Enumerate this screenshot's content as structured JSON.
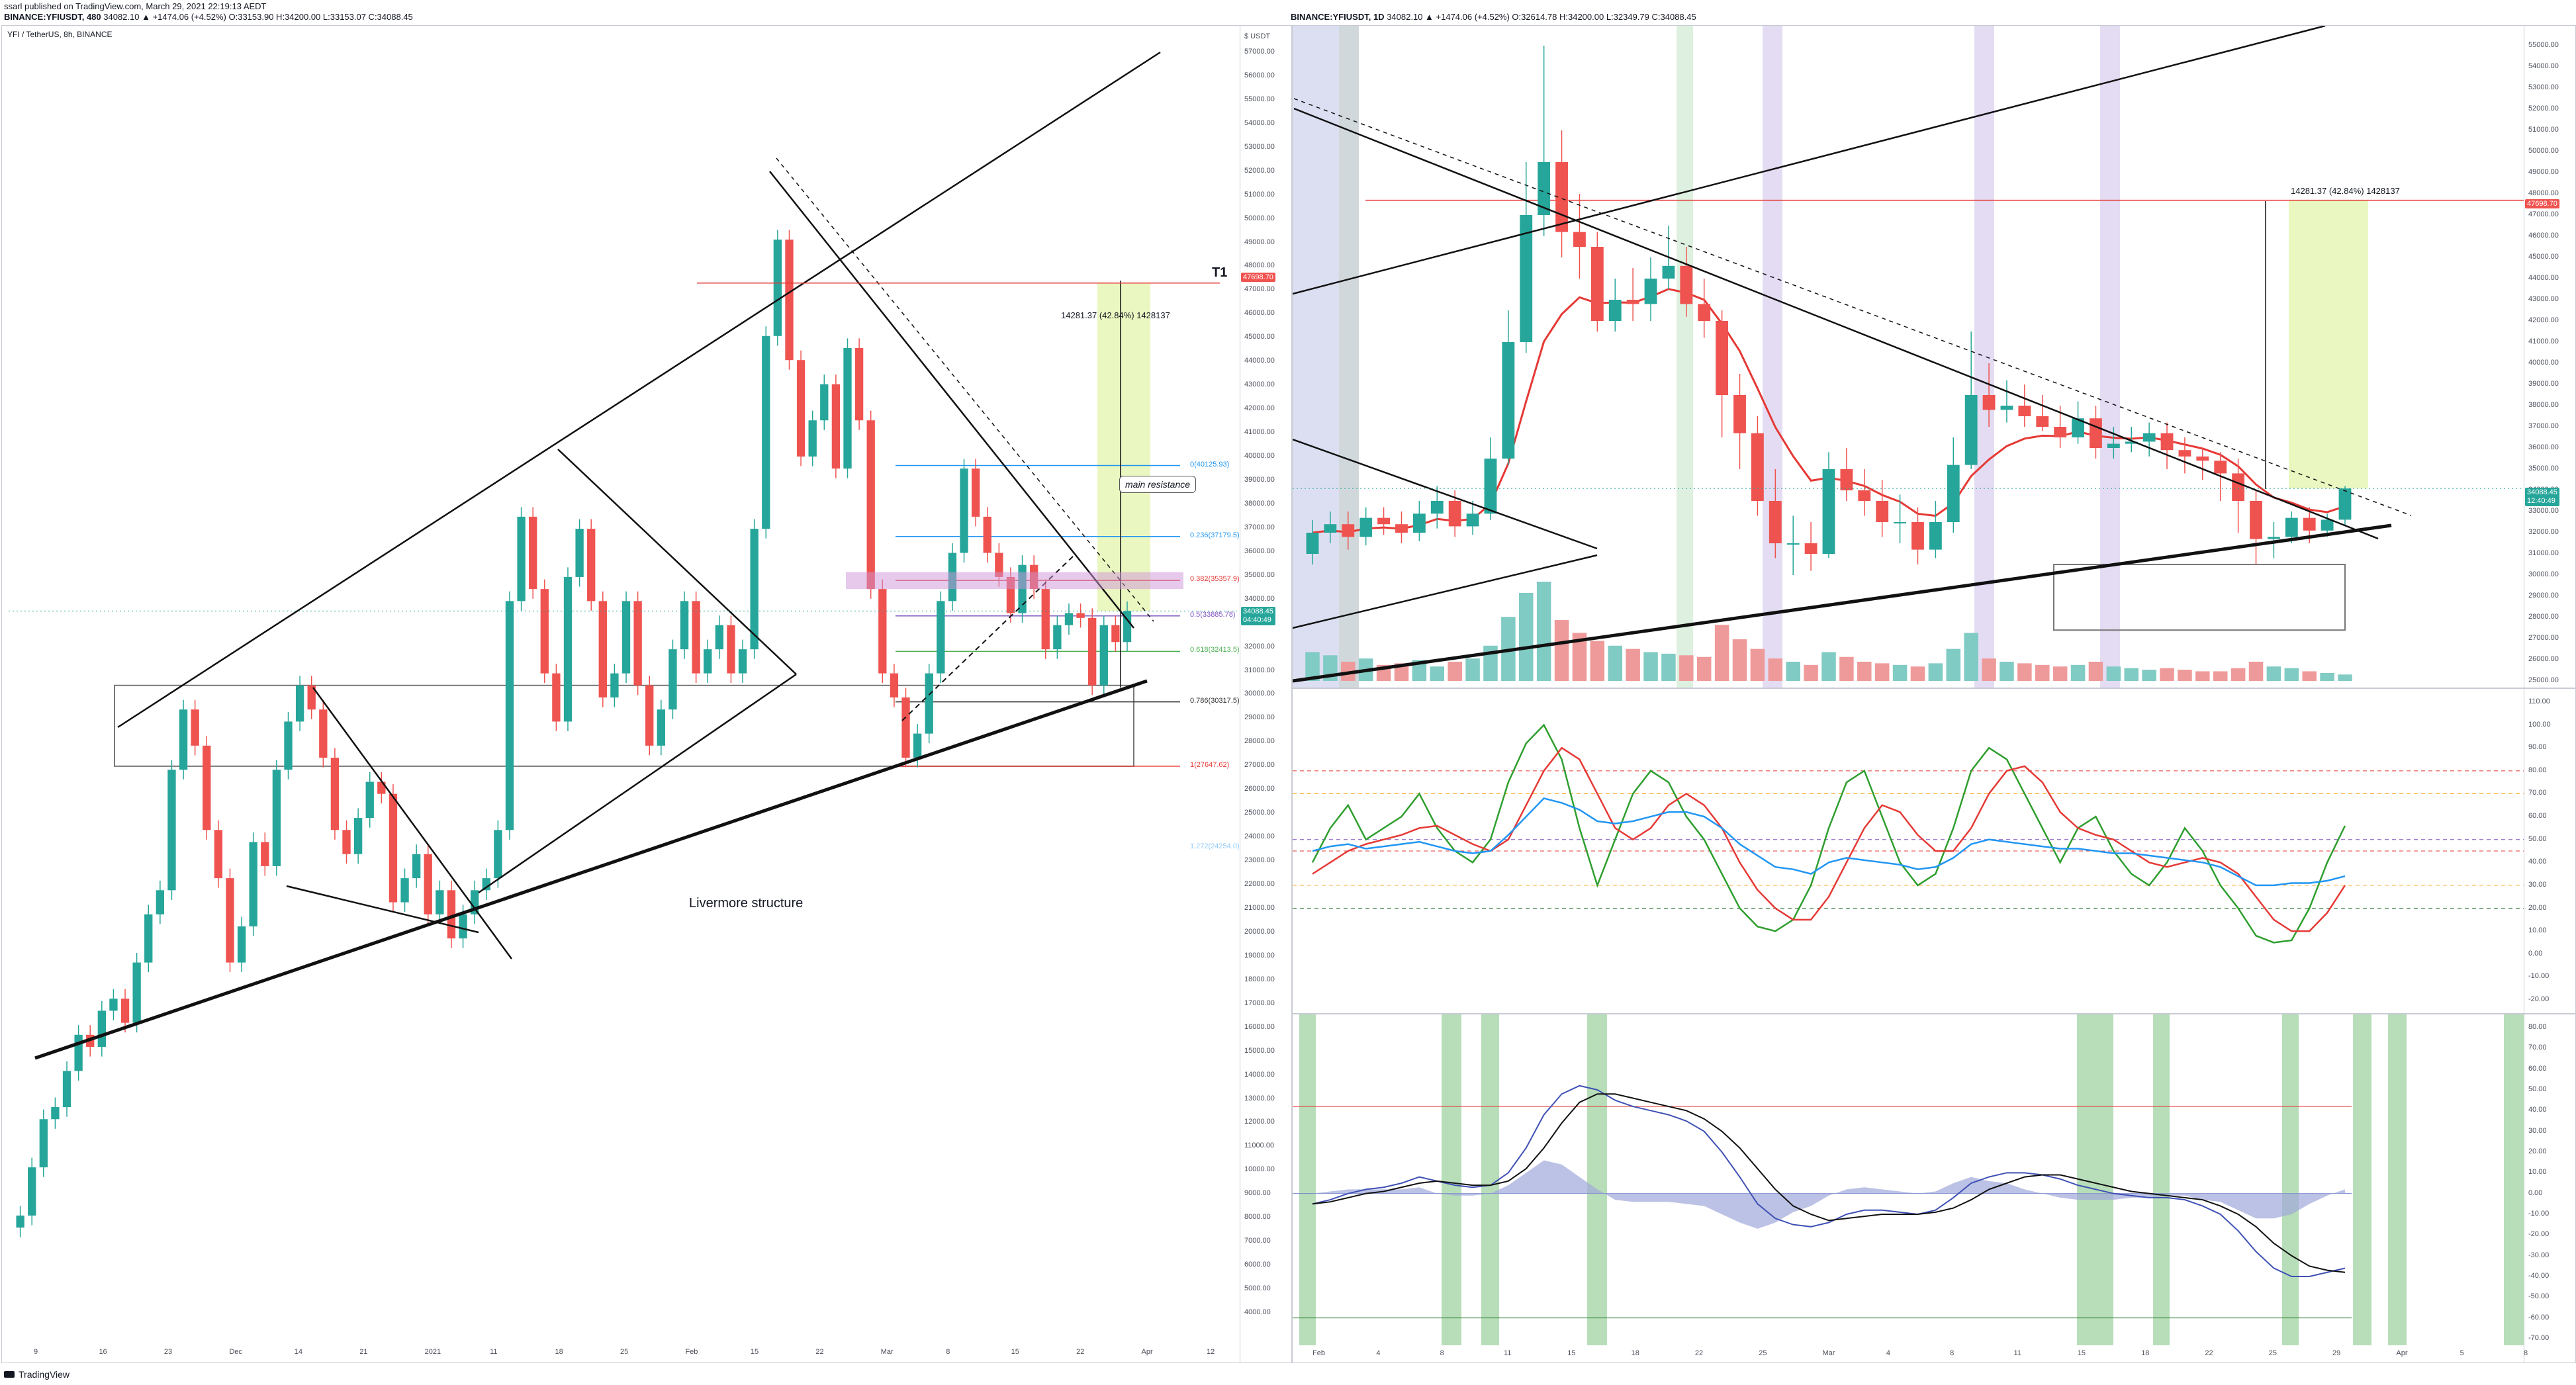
{
  "header": {
    "published": "ssarl published on TradingView.com, March 29, 2021 22:19:13 AEDT",
    "left_symbol": "BINANCE:YFIUSDT, 480",
    "left_ohlc": "34082.10 ▲ +1474.06 (+4.52%) O:33153.90 H:34200.00 L:33153.07 C:34088.45",
    "right_symbol": "BINANCE:YFIUSDT, 1D",
    "right_ohlc": "34082.10 ▲ +1474.06 (+4.52%) O:32614.78 H:34200.00 L:32349.79 C:34088.45"
  },
  "left_panel": {
    "title": "YFI / TetherUS, 8h, BINANCE",
    "currency": "$ USDT",
    "y_ticks": [
      "57000.00",
      "56000.00",
      "55000.00",
      "54000.00",
      "53000.00",
      "52000.00",
      "51000.00",
      "50000.00",
      "49000.00",
      "48000.00",
      "47000.00",
      "46000.00",
      "45000.00",
      "44000.00",
      "43000.00",
      "42000.00",
      "41000.00",
      "40000.00",
      "39000.00",
      "38000.00",
      "37000.00",
      "36000.00",
      "35000.00",
      "34000.00",
      "33000.00",
      "32000.00",
      "31000.00",
      "30000.00",
      "29000.00",
      "28000.00",
      "27000.00",
      "26000.00",
      "25000.00",
      "24000.00",
      "23000.00",
      "22000.00",
      "21000.00",
      "20000.00",
      "19000.00",
      "18000.00",
      "17000.00",
      "16000.00",
      "15000.00",
      "14000.00",
      "13000.00",
      "12000.00",
      "11000.00",
      "10000.00",
      "9000.00",
      "8000.00",
      "7000.00",
      "6000.00",
      "5000.00",
      "4000.00"
    ],
    "x_ticks": [
      "9",
      "16",
      "23",
      "Dec",
      "14",
      "21",
      "2021",
      "11",
      "18",
      "25",
      "Feb",
      "15",
      "22",
      "Mar",
      "8",
      "15",
      "22",
      "Apr",
      "12"
    ],
    "annotations": {
      "structure": "Livermore structure",
      "resistance": "main resistance",
      "target": "T1",
      "measure": "14281.37 (42.84%) 1428137",
      "price_tag": "34088.45",
      "price_tag_sub": "04:40:49",
      "target_tag": "47698.70"
    },
    "fib_levels": [
      "0(40125.93)",
      "0.236(37179.5)",
      "0.382(35357.9)",
      "0.5(33885.78)",
      "0.618(32413.5)",
      "0.786(30317.5)",
      "1(27647.62)",
      "1.272(24254.0)"
    ]
  },
  "right_panel": {
    "y_ticks": [
      "55000.00",
      "54000.00",
      "53000.00",
      "52000.00",
      "51000.00",
      "50000.00",
      "49000.00",
      "48000.00",
      "47000.00",
      "46000.00",
      "45000.00",
      "44000.00",
      "43000.00",
      "42000.00",
      "41000.00",
      "40000.00",
      "39000.00",
      "38000.00",
      "37000.00",
      "36000.00",
      "35000.00",
      "34000.00",
      "33000.00",
      "32000.00",
      "31000.00",
      "30000.00",
      "29000.00",
      "28000.00",
      "27000.00",
      "26000.00",
      "25000.00"
    ],
    "x_ticks": [
      "Feb",
      "4",
      "8",
      "11",
      "15",
      "18",
      "22",
      "25",
      "Mar",
      "4",
      "8",
      "11",
      "15",
      "18",
      "22",
      "25",
      "29",
      "Apr",
      "5",
      "8"
    ],
    "measure": "14281.37 (42.84%) 1428137",
    "price_tag": "34088.45",
    "price_tag_sub": "12:40:49",
    "target_tag": "47698.70"
  },
  "stoch_panel": {
    "y_ticks": [
      "110.00",
      "100.00",
      "90.00",
      "80.00",
      "70.00",
      "60.00",
      "50.00",
      "40.00",
      "30.00",
      "20.00",
      "10.00",
      "0.00",
      "-10.00",
      "-20.00"
    ]
  },
  "macd_panel": {
    "y_ticks": [
      "80.00",
      "70.00",
      "60.00",
      "50.00",
      "40.00",
      "30.00",
      "20.00",
      "10.00",
      "0.00",
      "-10.00",
      "-20.00",
      "-30.00",
      "-40.00",
      "-50.00",
      "-60.00",
      "-70.00"
    ]
  },
  "branding": {
    "name": "TradingView"
  },
  "colors": {
    "up": "#26a69a",
    "down": "#ef5350",
    "target_zone": "#e6f5b0",
    "ema": "#e53935",
    "stoch_k": "#2e9e2e",
    "stoch_d": "#e53935",
    "rsi": "#2196f3"
  },
  "chart_data": [
    {
      "type": "line",
      "title": "YFI / TetherUS, 8h, BINANCE",
      "xlabel": "",
      "ylabel": "",
      "ylim": [
        4000,
        57000
      ],
      "series": [
        {
          "values": [
            8500,
            9000,
            11000,
            13000,
            13500,
            15000,
            16500,
            16000,
            17500,
            18000,
            17000,
            19500,
            21500,
            22500,
            27500,
            30000,
            28500,
            25000,
            23000,
            19500,
            21000,
            24500,
            23500,
            27500,
            29500,
            31000,
            30000,
            28000,
            25000,
            24000,
            25500,
            27000,
            26500,
            22000,
            23000,
            24000,
            21500,
            22500,
            20500,
            21500,
            22500,
            23000,
            25000,
            34500,
            38000,
            35000,
            31500,
            29500,
            35500,
            37500,
            34500,
            30500,
            31500,
            34500,
            31000,
            28500,
            30000,
            32500,
            34500,
            31500,
            32500,
            33500,
            31500,
            32500,
            37500,
            45500,
            49500,
            44500,
            40500,
            42000,
            43500,
            40000,
            45000,
            42000,
            35000,
            31500,
            30500,
            28000,
            29000,
            31500,
            34500,
            36500,
            40000,
            38000,
            36500,
            35500,
            34000,
            36000,
            35000,
            32500,
            33500,
            34000,
            33800,
            31000,
            33500,
            32800,
            34088
          ]
        }
      ]
    },
    {
      "type": "bar",
      "title": "BINANCE:YFIUSDT, 1D",
      "xlabel": "",
      "ylabel": "",
      "ylim": [
        25000,
        55000
      ],
      "categories": [
        "Jan30",
        "Jan31",
        "Feb1",
        "Feb2",
        "Feb3",
        "Feb4",
        "Feb5",
        "Feb6",
        "Feb7",
        "Feb8",
        "Feb9",
        "Feb10",
        "Feb11",
        "Feb12",
        "Feb13",
        "Feb14",
        "Feb15",
        "Feb16",
        "Feb17",
        "Feb18",
        "Feb19",
        "Feb20",
        "Feb21",
        "Feb22",
        "Feb23",
        "Feb24",
        "Feb25",
        "Feb26",
        "Feb27",
        "Feb28",
        "Mar1",
        "Mar2",
        "Mar3",
        "Mar4",
        "Mar5",
        "Mar6",
        "Mar7",
        "Mar8",
        "Mar9",
        "Mar10",
        "Mar11",
        "Mar12",
        "Mar13",
        "Mar14",
        "Mar15",
        "Mar16",
        "Mar17",
        "Mar18",
        "Mar19",
        "Mar20",
        "Mar21",
        "Mar22",
        "Mar23",
        "Mar24",
        "Mar25",
        "Mar26",
        "Mar27",
        "Mar28",
        "Mar29"
      ],
      "series": [
        {
          "name": "open",
          "values": [
            31000,
            32000,
            32400,
            31800,
            32700,
            32400,
            32000,
            32900,
            33500,
            32300,
            32900,
            35500,
            41000,
            47000,
            49500,
            46200,
            45500,
            42000,
            43000,
            42800,
            44000,
            44600,
            42800,
            42000,
            38500,
            36700,
            33500,
            31500,
            31500,
            31000,
            35000,
            34000,
            33500,
            32500,
            32500,
            31200,
            32500,
            35200,
            38500,
            37800,
            38000,
            37500,
            37000,
            36500,
            37400,
            36000,
            36200,
            36300,
            36700,
            35900,
            35600,
            35400,
            34800,
            33500,
            31700,
            31800,
            32700,
            32100,
            32614
          ]
        },
        {
          "name": "close",
          "values": [
            32000,
            32400,
            31800,
            32700,
            32400,
            32000,
            32900,
            33500,
            32300,
            32900,
            35500,
            41000,
            47000,
            49500,
            46200,
            45500,
            42000,
            43000,
            42800,
            44000,
            44600,
            42800,
            42000,
            38500,
            36700,
            33500,
            31500,
            31500,
            31000,
            35000,
            34000,
            33500,
            32500,
            32500,
            31200,
            32500,
            35200,
            38500,
            37800,
            38000,
            37500,
            37000,
            36500,
            37400,
            36000,
            36200,
            36300,
            36700,
            35900,
            35600,
            35400,
            34800,
            33500,
            31700,
            31800,
            32700,
            32100,
            32614,
            34088
          ]
        },
        {
          "name": "high",
          "values": [
            32600,
            33000,
            33000,
            33200,
            33200,
            33000,
            33500,
            34200,
            34000,
            33500,
            36500,
            42500,
            49500,
            55000,
            51000,
            48000,
            46200,
            44000,
            44500,
            45000,
            46500,
            45500,
            44000,
            42500,
            39500,
            37500,
            35000,
            32800,
            32500,
            35800,
            36000,
            35000,
            34500,
            33800,
            33200,
            33500,
            36500,
            41500,
            40000,
            39200,
            39000,
            38500,
            38000,
            38200,
            38000,
            37000,
            37000,
            37200,
            37200,
            36500,
            36000,
            35800,
            35500,
            34000,
            32500,
            33000,
            33200,
            32900,
            34200
          ]
        },
        {
          "name": "low",
          "values": [
            30500,
            31500,
            31200,
            31400,
            31900,
            31500,
            31600,
            32200,
            31800,
            31900,
            32600,
            35200,
            40500,
            46000,
            45000,
            44000,
            41500,
            41500,
            42000,
            42000,
            43500,
            42200,
            41200,
            36500,
            35000,
            32800,
            30800,
            30000,
            30200,
            30800,
            33500,
            32800,
            31800,
            31500,
            30500,
            30800,
            32000,
            35000,
            37000,
            37200,
            37000,
            36800,
            36000,
            36200,
            35500,
            35500,
            35800,
            35600,
            35000,
            34800,
            34500,
            33500,
            32000,
            30500,
            30800,
            31500,
            31500,
            31800,
            32349
          ]
        },
        {
          "name": "volume",
          "values": [
            18,
            16,
            12,
            14,
            10,
            11,
            13,
            9,
            12,
            14,
            22,
            40,
            55,
            62,
            38,
            30,
            25,
            22,
            20,
            18,
            17,
            16,
            15,
            35,
            26,
            20,
            14,
            12,
            10,
            18,
            15,
            12,
            11,
            10,
            9,
            11,
            20,
            30,
            14,
            12,
            11,
            10,
            9,
            10,
            12,
            9,
            8,
            7,
            8,
            7,
            6,
            6,
            8,
            12,
            9,
            8,
            6,
            5,
            4
          ]
        }
      ]
    },
    {
      "type": "line",
      "title": "",
      "xlabel": "",
      "ylabel": "",
      "ylim": [
        -20,
        110
      ],
      "series": [
        {
          "name": "K",
          "values": [
            40,
            55,
            65,
            50,
            55,
            60,
            70,
            55,
            45,
            40,
            50,
            75,
            92,
            100,
            85,
            55,
            30,
            50,
            70,
            80,
            75,
            60,
            50,
            35,
            20,
            12,
            10,
            15,
            30,
            55,
            75,
            80,
            60,
            40,
            30,
            35,
            55,
            80,
            90,
            85,
            70,
            55,
            40,
            55,
            60,
            45,
            35,
            30,
            40,
            55,
            45,
            30,
            20,
            8,
            5,
            6,
            20,
            40,
            56
          ]
        },
        {
          "name": "D",
          "values": [
            35,
            40,
            45,
            48,
            50,
            52,
            55,
            56,
            52,
            48,
            45,
            50,
            65,
            80,
            90,
            85,
            70,
            55,
            50,
            55,
            65,
            70,
            65,
            55,
            40,
            28,
            20,
            15,
            15,
            25,
            40,
            55,
            65,
            62,
            52,
            45,
            45,
            55,
            70,
            80,
            82,
            75,
            62,
            55,
            52,
            50,
            45,
            40,
            38,
            40,
            42,
            40,
            35,
            25,
            15,
            10,
            10,
            18,
            30
          ]
        },
        {
          "name": "RSI",
          "values": [
            45,
            47,
            48,
            46,
            47,
            48,
            49,
            47,
            45,
            44,
            45,
            52,
            60,
            68,
            66,
            63,
            58,
            57,
            58,
            60,
            62,
            62,
            60,
            55,
            48,
            43,
            38,
            37,
            35,
            40,
            42,
            41,
            40,
            39,
            37,
            38,
            42,
            48,
            50,
            49,
            48,
            47,
            46,
            46,
            45,
            44,
            44,
            43,
            42,
            41,
            40,
            38,
            34,
            30,
            30,
            31,
            31,
            32,
            34
          ]
        }
      ]
    },
    {
      "type": "line",
      "title": "",
      "xlabel": "",
      "ylabel": "",
      "ylim": [
        -70,
        80
      ],
      "series": [
        {
          "name": "MACD",
          "values": [
            -5,
            -3,
            0,
            2,
            3,
            5,
            8,
            6,
            4,
            3,
            4,
            10,
            22,
            38,
            48,
            52,
            50,
            45,
            42,
            40,
            38,
            35,
            30,
            20,
            8,
            -5,
            -12,
            -15,
            -16,
            -14,
            -10,
            -8,
            -8,
            -9,
            -10,
            -8,
            -2,
            5,
            8,
            10,
            10,
            9,
            7,
            4,
            2,
            0,
            -1,
            -2,
            -2,
            -3,
            -6,
            -10,
            -18,
            -28,
            -36,
            -40,
            -40,
            -38,
            -36
          ]
        },
        {
          "name": "Signal",
          "values": [
            -5,
            -4,
            -2,
            0,
            1,
            3,
            5,
            6,
            5,
            4,
            4,
            6,
            12,
            22,
            34,
            44,
            48,
            48,
            46,
            44,
            42,
            40,
            36,
            30,
            22,
            12,
            2,
            -6,
            -10,
            -13,
            -12,
            -11,
            -10,
            -10,
            -10,
            -9,
            -7,
            -3,
            2,
            5,
            8,
            9,
            9,
            7,
            5,
            3,
            1,
            0,
            -1,
            -2,
            -3,
            -6,
            -10,
            -16,
            -24,
            -30,
            -35,
            -37,
            -38
          ]
        }
      ]
    }
  ]
}
